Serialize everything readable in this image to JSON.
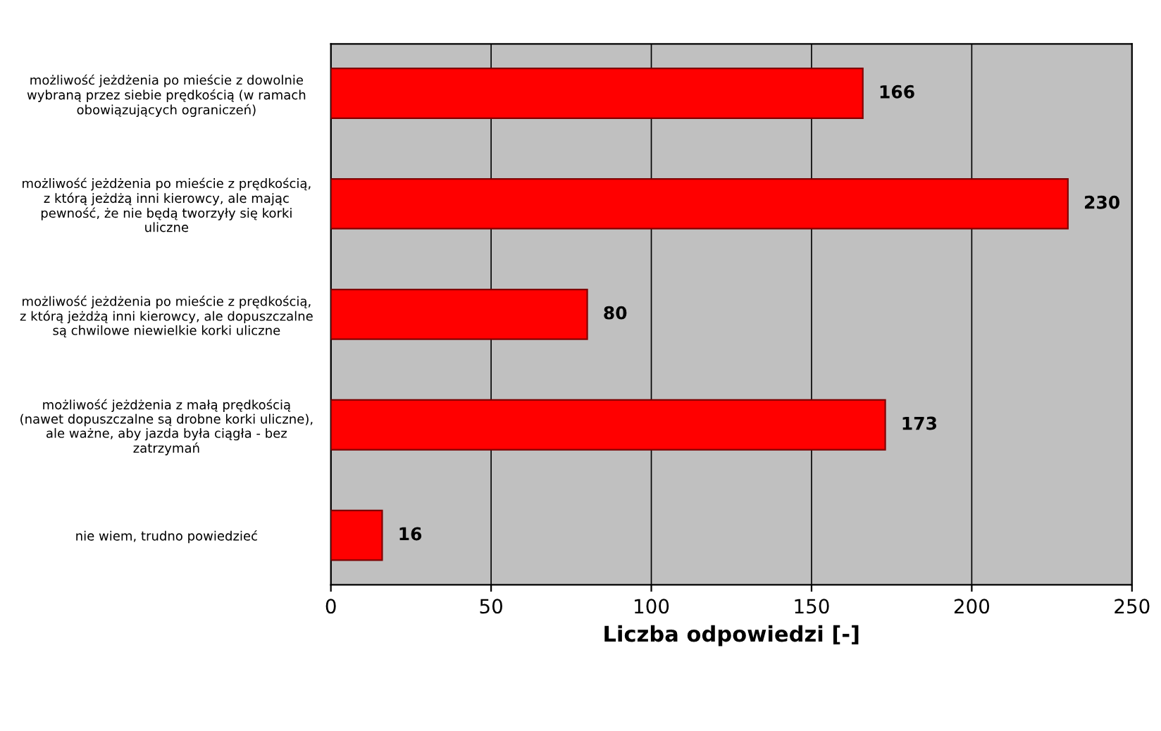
{
  "chart_data": {
    "type": "bar",
    "orientation": "horizontal",
    "xlabel": "Liczba odpowiedzi [-]",
    "categories": [
      "możliwość jeżdżenia po mieście z dowolnie\nwybraną przez siebie prędkością (w ramach\nobowiązujących ograniczeń)",
      "możliwość jeżdżenia po mieście z prędkością,\nz którą jeżdżą inni kierowcy, ale mając\npewność, że nie będą tworzyły się korki\nuliczne",
      "możliwość jeżdżenia po mieście z prędkością,\nz którą jeżdżą inni kierowcy, ale dopuszczalne\nsą chwilowe niewielkie korki uliczne",
      "możliwość jeżdżenia z małą prędkością\n(nawet dopuszczalne są drobne korki uliczne),\nale ważne, aby jazda była ciągła - bez\nzatrzymań",
      "nie wiem, trudno powiedzieć"
    ],
    "values": [
      166,
      230,
      80,
      173,
      16
    ],
    "color": "#ff0000",
    "xlim": [
      0,
      250
    ],
    "xticks": [
      0,
      50,
      100,
      150,
      200,
      250
    ],
    "grid": "x",
    "data_labels": true
  }
}
